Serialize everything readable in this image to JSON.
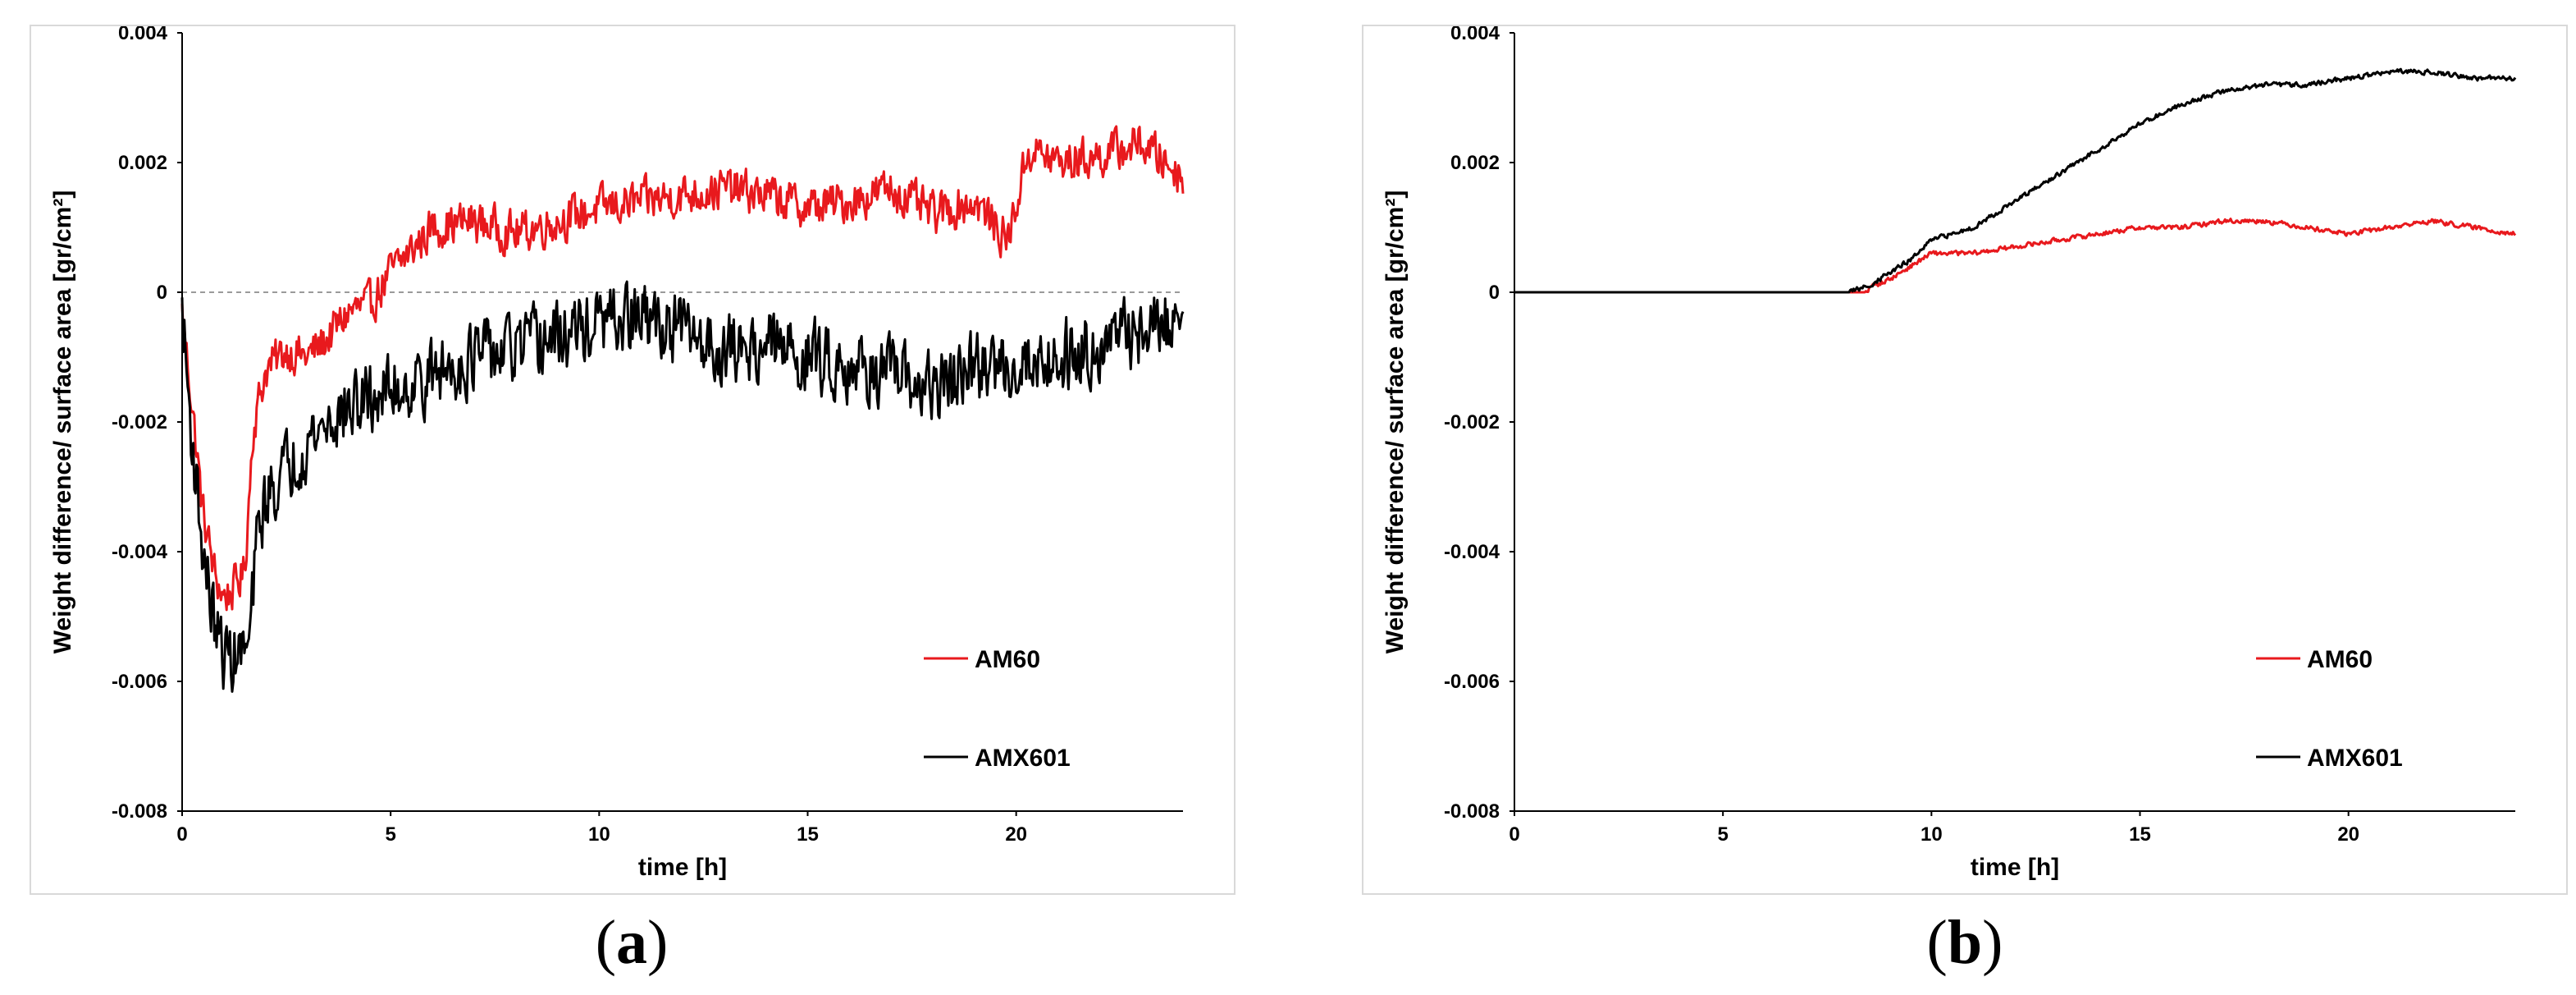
{
  "captions": {
    "a": "a",
    "b": "b"
  },
  "chart_data": [
    {
      "type": "line",
      "panel": "a",
      "xlabel": "time [h]",
      "ylabel": "Weight difference/ surface area [gr/cm²]",
      "xlim": [
        0,
        24
      ],
      "ylim": [
        -0.008,
        0.004
      ],
      "xticks": [
        0,
        5,
        10,
        15,
        20
      ],
      "yticks": [
        -0.008,
        -0.006,
        -0.004,
        -0.002,
        0,
        0.002,
        0.004
      ],
      "ytick_labels": [
        "-0.008",
        "-0.006",
        "-0.004",
        "-0.002",
        "0",
        "0.002",
        "0.004"
      ],
      "zero_reference_line": "dashed",
      "legend_position": "lower-right",
      "series": [
        {
          "name": "AM60",
          "color": "#e8191d",
          "noise": 0.00045,
          "x": [
            0,
            0.2,
            0.5,
            0.8,
            1.0,
            1.2,
            1.5,
            1.7,
            2.0,
            2.5,
            3.0,
            3.5,
            4.0,
            4.5,
            5.0,
            6.0,
            7.0,
            8.0,
            9.0,
            10.0,
            11.0,
            12.0,
            13.0,
            14.0,
            15.0,
            16.0,
            17.0,
            18.0,
            19.0,
            19.8,
            20.3,
            21.0,
            22.0,
            23.0,
            24.0
          ],
          "y": [
            -0.0003,
            -0.0015,
            -0.0034,
            -0.0044,
            -0.0047,
            -0.0046,
            -0.0043,
            -0.0021,
            -0.0012,
            -0.0009,
            -0.001,
            -0.0007,
            -0.0003,
            -0.0002,
            0.0003,
            0.001,
            0.0011,
            0.0009,
            0.0011,
            0.0013,
            0.0014,
            0.0015,
            0.0016,
            0.0015,
            0.0013,
            0.0014,
            0.0016,
            0.0012,
            0.0014,
            0.0008,
            0.0022,
            0.002,
            0.0021,
            0.0023,
            0.0018
          ]
        },
        {
          "name": "AMX601",
          "color": "#000000",
          "noise": 0.00075,
          "x": [
            0,
            0.2,
            0.5,
            0.8,
            1.0,
            1.3,
            1.6,
            1.8,
            2.0,
            2.5,
            3.0,
            3.5,
            4.0,
            5.0,
            6.0,
            7.0,
            8.0,
            9.0,
            10.0,
            11.0,
            12.0,
            13.0,
            14.0,
            15.0,
            16.0,
            17.0,
            18.0,
            19.0,
            20.0,
            21.0,
            22.0,
            23.0,
            24.0
          ],
          "y": [
            -0.0003,
            -0.002,
            -0.004,
            -0.0052,
            -0.0056,
            -0.0056,
            -0.0055,
            -0.0038,
            -0.0032,
            -0.0027,
            -0.0023,
            -0.002,
            -0.0018,
            -0.0015,
            -0.0013,
            -0.001,
            -0.0009,
            -0.0007,
            -0.0005,
            -0.0004,
            -0.0006,
            -0.0009,
            -0.0008,
            -0.001,
            -0.0011,
            -0.0013,
            -0.0015,
            -0.0012,
            -0.0011,
            -0.001,
            -0.0008,
            -0.0006,
            -0.0004
          ]
        }
      ]
    },
    {
      "type": "line",
      "panel": "b",
      "xlabel": "time [h]",
      "ylabel": "Weight difference/ surface area [gr/cm²]",
      "xlim": [
        0,
        24
      ],
      "ylim": [
        -0.008,
        0.004
      ],
      "xticks": [
        0,
        5,
        10,
        15,
        20
      ],
      "yticks": [
        -0.008,
        -0.006,
        -0.004,
        -0.002,
        0,
        0.002,
        0.004
      ],
      "ytick_labels": [
        "-0.008",
        "-0.006",
        "-0.004",
        "-0.002",
        "0",
        "0.002",
        "0.004"
      ],
      "legend_position": "lower-right",
      "series": [
        {
          "name": "AM60",
          "color": "#e8191d",
          "noise": 5e-05,
          "x": [
            0,
            8.4,
            8.6,
            9.0,
            9.5,
            10.0,
            11.0,
            12.0,
            13.0,
            14.0,
            15.0,
            16.0,
            17.0,
            18.0,
            19.0,
            20.0,
            21.0,
            22.0,
            23.0,
            24.0
          ],
          "y": [
            0,
            0,
            0.0001,
            0.0002,
            0.0004,
            0.0006,
            0.0006,
            0.0007,
            0.0008,
            0.0009,
            0.001,
            0.001,
            0.0011,
            0.0011,
            0.001,
            0.0009,
            0.001,
            0.0011,
            0.001,
            0.0009
          ]
        },
        {
          "name": "AMX601",
          "color": "#000000",
          "noise": 5e-05,
          "x": [
            0,
            8.0,
            8.5,
            9.0,
            9.5,
            10.0,
            11.0,
            12.0,
            13.0,
            14.0,
            15.0,
            16.0,
            17.0,
            18.0,
            19.0,
            20.0,
            21.0,
            22.0,
            23.0,
            24.0
          ],
          "y": [
            0,
            0,
            0.0001,
            0.0003,
            0.0005,
            0.0008,
            0.001,
            0.0014,
            0.0018,
            0.0022,
            0.0026,
            0.0029,
            0.0031,
            0.0032,
            0.0032,
            0.0033,
            0.0034,
            0.0034,
            0.0033,
            0.0033
          ]
        }
      ]
    }
  ]
}
